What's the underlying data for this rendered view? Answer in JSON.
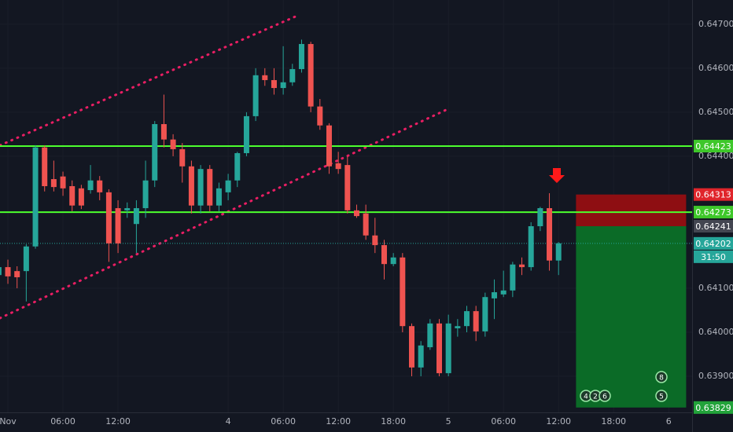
{
  "chart_data": {
    "type": "candlestick",
    "xlim": [
      -0.86,
      74.55
    ],
    "ylim": [
      0.63818,
      0.64755
    ],
    "xticks": [
      {
        "value": 0,
        "label": "Nov"
      },
      {
        "value": 6,
        "label": "06:00"
      },
      {
        "value": 12,
        "label": "12:00"
      },
      {
        "value": 24,
        "label": "4"
      },
      {
        "value": 30,
        "label": "06:00"
      },
      {
        "value": 36,
        "label": "12:00"
      },
      {
        "value": 42,
        "label": "18:00"
      },
      {
        "value": 48,
        "label": "5"
      },
      {
        "value": 54,
        "label": "06:00"
      },
      {
        "value": 60,
        "label": "12:00"
      },
      {
        "value": 66,
        "label": "18:00"
      },
      {
        "value": 72,
        "label": "6"
      }
    ],
    "yticks": [
      {
        "value": 0.639,
        "label": "0.63900"
      },
      {
        "value": 0.64,
        "label": "0.64000"
      },
      {
        "value": 0.641,
        "label": "0.64100"
      },
      {
        "value": 0.644,
        "label": "0.64400"
      },
      {
        "value": 0.645,
        "label": "0.64500"
      },
      {
        "value": 0.646,
        "label": "0.64600"
      },
      {
        "value": 0.647,
        "label": "0.64700"
      }
    ],
    "up_color": "#26a69a",
    "down_color": "#ef5350",
    "x": [
      -1,
      0,
      1,
      2,
      3,
      4,
      5,
      6,
      7,
      8,
      9,
      10,
      11,
      12,
      13,
      14,
      15,
      16,
      17,
      18,
      19,
      20,
      21,
      22,
      23,
      24,
      25,
      26,
      27,
      28,
      29,
      30,
      31,
      32,
      33,
      34,
      35,
      36,
      37,
      38,
      39,
      40,
      41,
      42,
      43,
      44,
      45,
      46,
      47,
      48,
      49,
      50,
      51,
      52,
      53,
      54,
      55,
      56,
      57,
      58,
      59,
      60
    ],
    "open": [
      0.6413,
      0.64148,
      0.64139,
      0.64139,
      0.64195,
      0.6442,
      0.64348,
      0.64354,
      0.64332,
      0.64327,
      0.64323,
      0.64345,
      0.64318,
      0.64282,
      0.64277,
      0.64246,
      0.64282,
      0.64345,
      0.64473,
      0.64438,
      0.64416,
      0.64377,
      0.64288,
      0.64371,
      0.64288,
      0.64318,
      0.64345,
      0.64407,
      0.64491,
      0.64584,
      0.64573,
      0.64555,
      0.64568,
      0.64598,
      0.64655,
      0.64513,
      0.6447,
      0.64384,
      0.6438,
      0.64277,
      0.6427,
      0.6422,
      0.64198,
      0.64155,
      0.6417,
      0.64014,
      0.6392,
      0.63966,
      0.6402,
      0.63907,
      0.64009,
      0.64014,
      0.64048,
      0.64002,
      0.64077,
      0.64086,
      0.64095,
      0.64154,
      0.64148,
      0.64241,
      0.64282,
      0.64163
    ],
    "high": [
      0.6416,
      0.64165,
      0.6415,
      0.642,
      0.64425,
      0.64425,
      0.6439,
      0.64365,
      0.64345,
      0.64335,
      0.6438,
      0.64355,
      0.64325,
      0.643,
      0.64295,
      0.643,
      0.6439,
      0.6448,
      0.6454,
      0.6445,
      0.6443,
      0.6439,
      0.6438,
      0.6438,
      0.6434,
      0.6436,
      0.6441,
      0.645,
      0.646,
      0.646,
      0.646,
      0.6465,
      0.6461,
      0.64665,
      0.6466,
      0.6453,
      0.64475,
      0.6441,
      0.644,
      0.6429,
      0.6429,
      0.6426,
      0.6421,
      0.6418,
      0.6418,
      0.6402,
      0.6398,
      0.6403,
      0.6403,
      0.6404,
      0.6403,
      0.6406,
      0.6406,
      0.6409,
      0.6412,
      0.6414,
      0.6416,
      0.6417,
      0.6425,
      0.64285,
      0.64316,
      0.64205
    ],
    "low": [
      0.6412,
      0.6411,
      0.641,
      0.6407,
      0.6419,
      0.6432,
      0.6432,
      0.6431,
      0.64275,
      0.6428,
      0.64315,
      0.643,
      0.6416,
      0.6418,
      0.6426,
      0.6418,
      0.6426,
      0.6433,
      0.6442,
      0.644,
      0.6434,
      0.6427,
      0.6427,
      0.64275,
      0.64275,
      0.643,
      0.6433,
      0.644,
      0.6448,
      0.6456,
      0.6454,
      0.6454,
      0.6456,
      0.6459,
      0.645,
      0.6446,
      0.6436,
      0.6436,
      0.6427,
      0.6426,
      0.6421,
      0.6418,
      0.6412,
      0.6415,
      0.64,
      0.639,
      0.639,
      0.6396,
      0.639,
      0.639,
      0.6399,
      0.64,
      0.6398,
      0.6399,
      0.6403,
      0.6408,
      0.6408,
      0.6413,
      0.6414,
      0.6423,
      0.6414,
      0.6413
    ],
    "close": [
      0.64148,
      0.64127,
      0.64125,
      0.64195,
      0.6442,
      0.64332,
      0.6433,
      0.64327,
      0.64288,
      0.64288,
      0.64345,
      0.64318,
      0.64202,
      0.64202,
      0.64282,
      0.64282,
      0.64345,
      0.64473,
      0.64438,
      0.64416,
      0.64377,
      0.64288,
      0.64371,
      0.64288,
      0.64327,
      0.64345,
      0.64407,
      0.64491,
      0.64584,
      0.64573,
      0.64555,
      0.64568,
      0.64598,
      0.64655,
      0.64513,
      0.6447,
      0.64377,
      0.64371,
      0.64277,
      0.64264,
      0.6422,
      0.64198,
      0.64155,
      0.6417,
      0.64014,
      0.6392,
      0.6397,
      0.6402,
      0.63907,
      0.6402,
      0.64014,
      0.64048,
      0.64002,
      0.6408,
      0.64091,
      0.64095,
      0.64154,
      0.64148,
      0.64241,
      0.64282,
      0.64163,
      0.64202
    ],
    "hlines": [
      {
        "value": 0.64423,
        "color": "#4cff2e"
      },
      {
        "value": 0.64273,
        "color": "#4cff2e"
      }
    ],
    "position": {
      "x": [
        61.9,
        73.9
      ],
      "entry": 0.64241,
      "stop": 0.64313,
      "target": 0.63829
    },
    "last_price": 0.64202,
    "countdown": "31:50",
    "events": [
      "4",
      "2",
      "6",
      "8",
      "5"
    ]
  }
}
